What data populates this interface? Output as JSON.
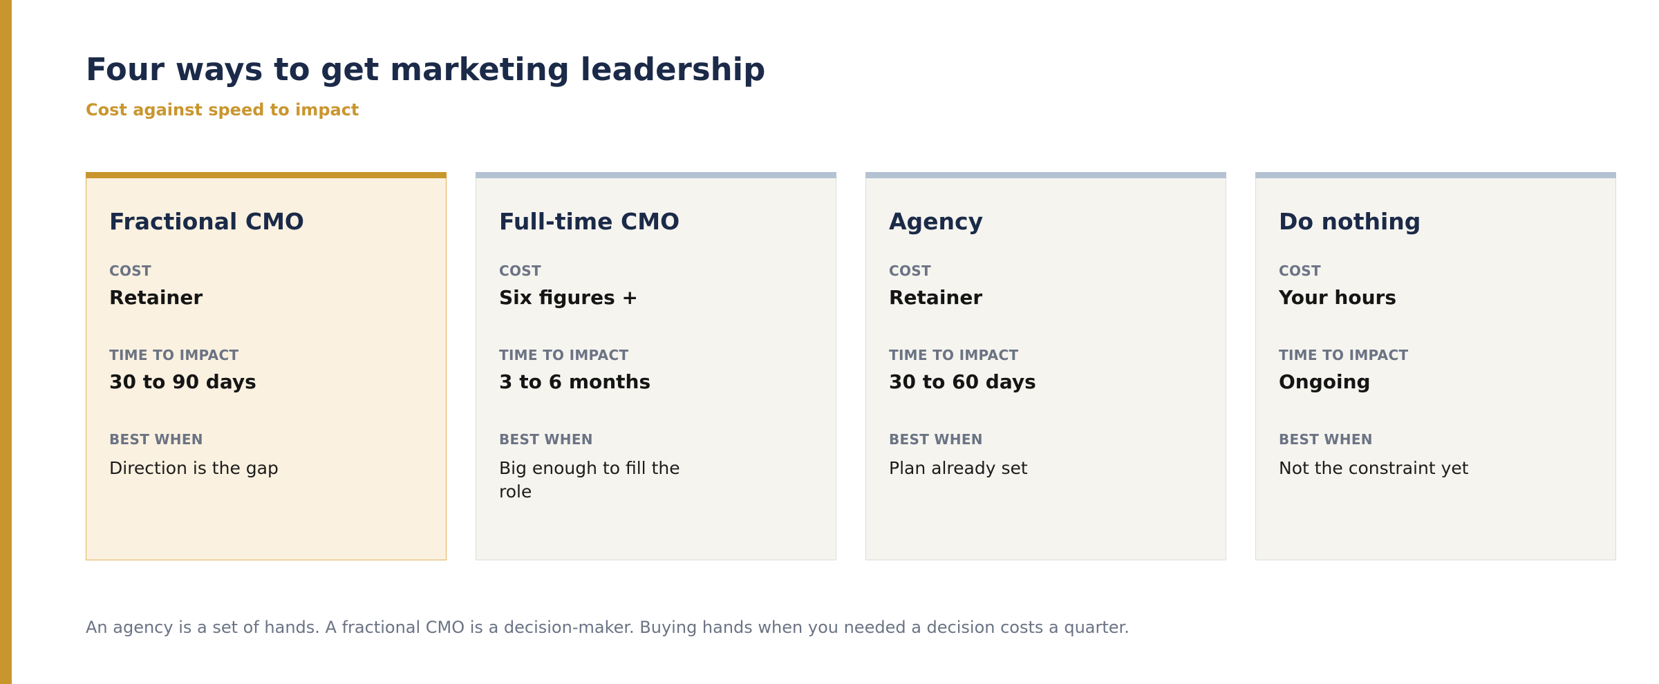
{
  "header": {
    "title": "Four ways to get marketing leadership",
    "subtitle": "Cost against speed to impact"
  },
  "colors": {
    "accent": "#c9962e",
    "navy": "#1b2a48",
    "muted": "#6b7384",
    "card_bg": "#f5f4ef",
    "featured_bg": "#faf1e0",
    "card_topbar": "#b4c2d2"
  },
  "cards": [
    {
      "title": "Fractional CMO",
      "cost_label": "COST",
      "cost": "Retainer",
      "time_label": "TIME TO IMPACT",
      "time": "30 to 90 days",
      "best_label": "BEST WHEN",
      "best": "Direction is the gap",
      "featured": true
    },
    {
      "title": "Full-time CMO",
      "cost_label": "COST",
      "cost": "Six figures +",
      "time_label": "TIME TO IMPACT",
      "time": "3 to 6 months",
      "best_label": "BEST WHEN",
      "best": "Big enough to fill the role",
      "featured": false
    },
    {
      "title": "Agency",
      "cost_label": "COST",
      "cost": "Retainer",
      "time_label": "TIME TO IMPACT",
      "time": "30 to 60 days",
      "best_label": "BEST WHEN",
      "best": "Plan already set",
      "featured": false
    },
    {
      "title": "Do nothing",
      "cost_label": "COST",
      "cost": "Your hours",
      "time_label": "TIME TO IMPACT",
      "time": "Ongoing",
      "best_label": "BEST WHEN",
      "best": "Not the constraint yet",
      "featured": false
    }
  ],
  "footnote": "An agency is a set of hands. A fractional CMO is a decision-maker. Buying hands when you needed a decision costs a quarter."
}
